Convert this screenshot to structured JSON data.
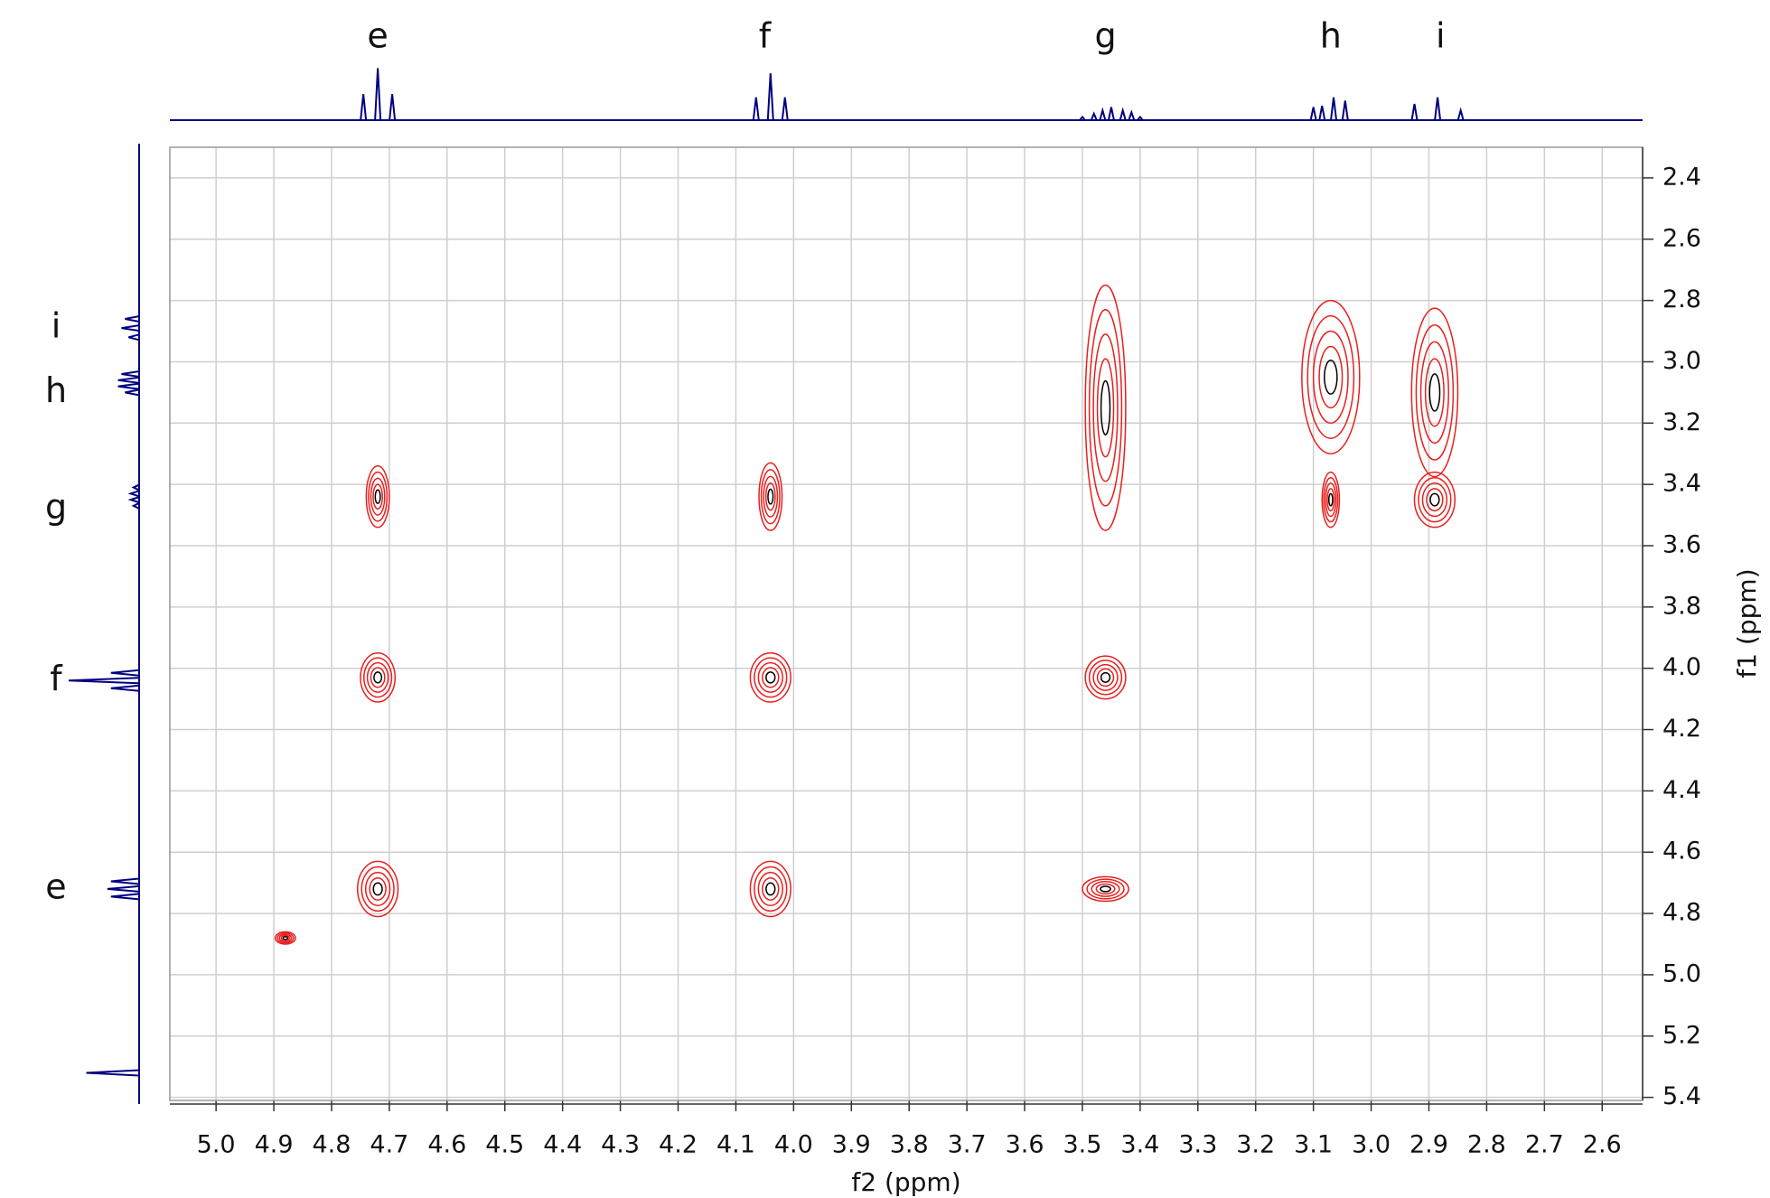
{
  "chart_data": {
    "type": "contour",
    "x_label": "f2 (ppm)",
    "y_label": "f1 (ppm)",
    "xlim": [
      5.08,
      2.53
    ],
    "ylim": [
      5.41,
      2.3
    ],
    "xticks": [
      {
        "value": 5,
        "label": "5.0"
      },
      4.9,
      4.8,
      4.7,
      4.6,
      4.5,
      4.4,
      4.3,
      4.2,
      4.1,
      {
        "value": 4,
        "label": "4.0"
      },
      3.9,
      3.8,
      3.7,
      3.6,
      3.5,
      3.4,
      3.3,
      3.2,
      3.1,
      {
        "value": 3,
        "label": "3.0"
      },
      2.9,
      2.8,
      2.7,
      2.6
    ],
    "yticks": [
      2.4,
      2.6,
      2.8,
      {
        "value": 3,
        "label": "3.0"
      },
      3.2,
      3.4,
      3.6,
      3.8,
      {
        "value": 4,
        "label": "4.0"
      },
      4.2,
      4.4,
      4.6,
      4.8,
      {
        "value": 5,
        "label": "5.0"
      },
      5.2,
      5.4
    ],
    "grid": true,
    "color": "#e8201f",
    "trace_color": "#000080",
    "peaks": {
      "x": [
        4.72,
        4.04,
        4.72,
        4.04,
        3.46,
        4.72,
        4.04,
        3.46,
        4.88,
        3.46,
        3.07,
        2.89,
        3.07,
        2.89
      ],
      "y": [
        3.44,
        3.44,
        4.03,
        4.03,
        4.03,
        4.72,
        4.72,
        4.72,
        4.88,
        3.15,
        3.05,
        3.1,
        3.45,
        3.45
      ],
      "wx": [
        0.04,
        0.04,
        0.06,
        0.07,
        0.07,
        0.07,
        0.07,
        0.08,
        0.035,
        0.07,
        0.1,
        0.08,
        0.03,
        0.07
      ],
      "wy": [
        0.2,
        0.22,
        0.16,
        0.16,
        0.14,
        0.18,
        0.18,
        0.08,
        0.04,
        0.8,
        0.5,
        0.55,
        0.18,
        0.18
      ]
    },
    "f2_trace": {
      "x": [
        4.745,
        4.72,
        4.695,
        4.065,
        4.04,
        4.015,
        3.5,
        3.48,
        3.465,
        3.45,
        3.43,
        3.415,
        3.4,
        3.1,
        3.085,
        3.065,
        3.045,
        2.925,
        2.885,
        2.845
      ],
      "values": [
        0.4,
        0.8,
        0.4,
        0.35,
        0.72,
        0.35,
        0.05,
        0.1,
        0.15,
        0.2,
        0.15,
        0.12,
        0.05,
        0.2,
        0.22,
        0.35,
        0.3,
        0.25,
        0.35,
        0.15
      ],
      "labels": [
        "e",
        "f",
        "g",
        "h",
        "i"
      ],
      "label_ppm": [
        4.72,
        4.05,
        3.46,
        3.07,
        2.88
      ]
    },
    "f1_trace": {
      "x": [
        2.86,
        2.89,
        2.92,
        3.04,
        3.06,
        3.08,
        3.1,
        3.41,
        3.43,
        3.45,
        3.47,
        4.015,
        4.04,
        4.065,
        4.695,
        4.72,
        4.745,
        5.32
      ],
      "values": [
        0.2,
        0.25,
        0.15,
        0.25,
        0.3,
        0.3,
        0.2,
        0.08,
        0.12,
        0.12,
        0.08,
        0.4,
        1.0,
        0.4,
        0.4,
        0.45,
        0.4,
        0.75
      ],
      "labels": [
        "i",
        "h",
        "g",
        "f",
        "e"
      ],
      "label_ppm": [
        2.89,
        3.1,
        3.48,
        4.04,
        4.72
      ]
    }
  }
}
